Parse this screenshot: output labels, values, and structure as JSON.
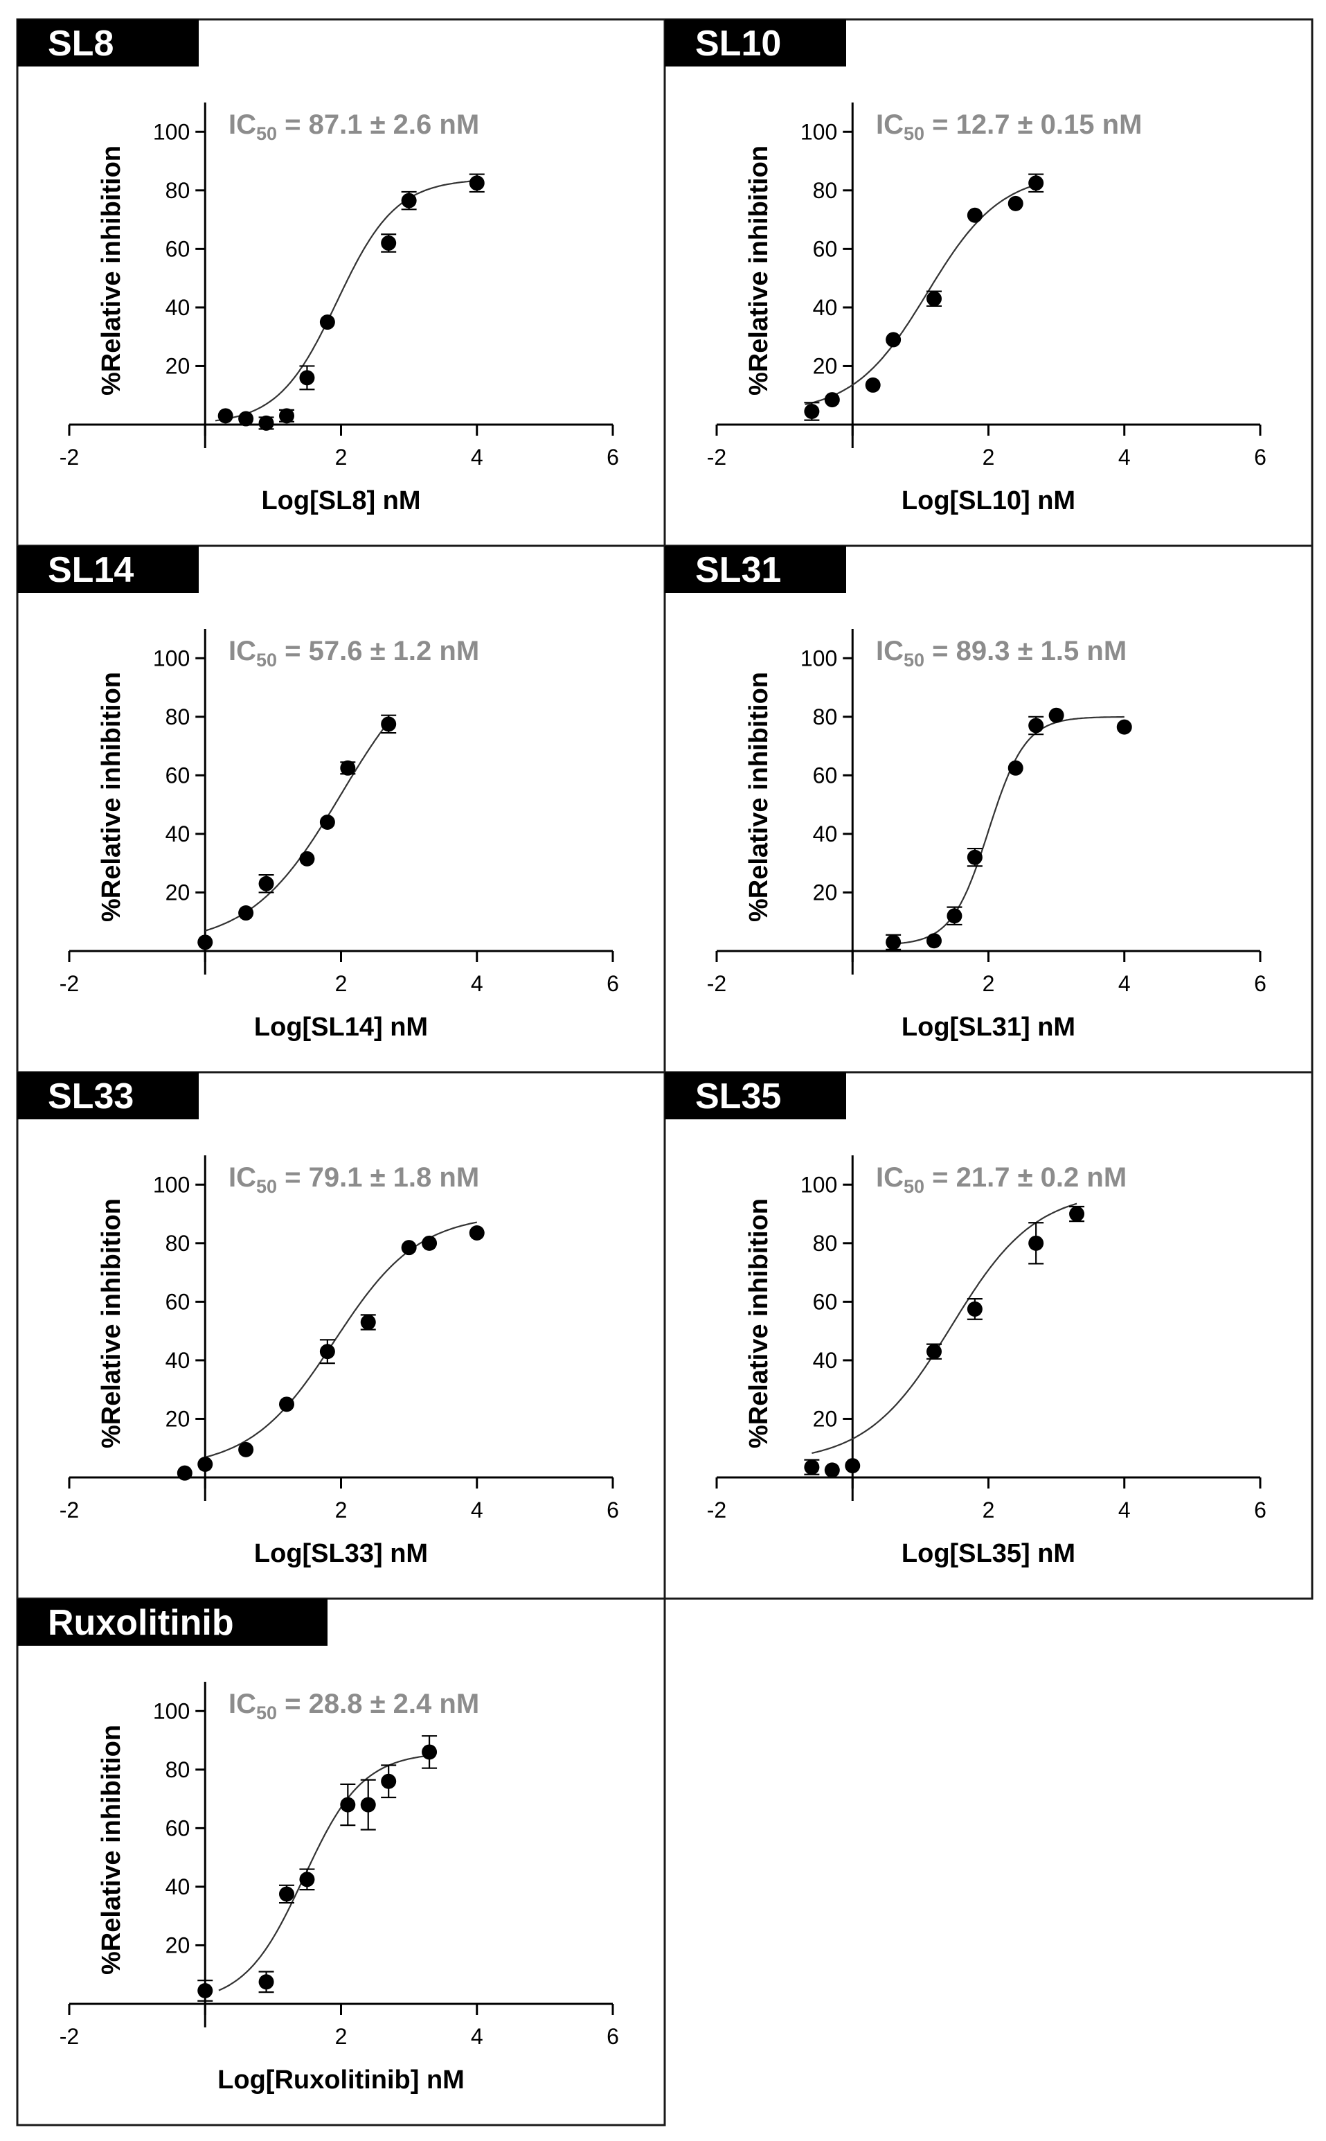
{
  "chart_data": [
    {
      "type": "scatter",
      "label": "SL8",
      "ic50_prefix": "IC",
      "ic50_sub": "50",
      "ic50_value": " = 87.1 ± 2.6 nM",
      "xlabel": "Log[SL8] nM",
      "ylabel": "%Relative inhibition",
      "xlim": [
        -2,
        6
      ],
      "ylim": [
        0,
        110
      ],
      "xticks": [
        "-2",
        "2",
        "4",
        "6"
      ],
      "yticks": [
        "20",
        "40",
        "60",
        "80",
        "100"
      ],
      "fit": {
        "bottom": 0,
        "top": 84,
        "logIC50": 1.94,
        "hill": 1.0,
        "xmin": 0.15,
        "xmax": 4.0
      },
      "points": [
        {
          "x": 0.3,
          "y": 3,
          "err": 0
        },
        {
          "x": 0.6,
          "y": 2,
          "err": 0
        },
        {
          "x": 0.9,
          "y": 0.5,
          "err": 2
        },
        {
          "x": 1.2,
          "y": 3,
          "err": 2
        },
        {
          "x": 1.5,
          "y": 16,
          "err": 4
        },
        {
          "x": 1.8,
          "y": 35,
          "err": 0
        },
        {
          "x": 2.7,
          "y": 62,
          "err": 3
        },
        {
          "x": 3.0,
          "y": 76.5,
          "err": 3
        },
        {
          "x": 4.0,
          "y": 82.5,
          "err": 3
        }
      ]
    },
    {
      "type": "scatter",
      "label": "SL10",
      "ic50_prefix": "IC",
      "ic50_sub": "50",
      "ic50_value": " = 12.7 ± 0.15 nM",
      "xlabel": "Log[SL10] nM",
      "ylabel": "%Relative inhibition",
      "xlim": [
        -2,
        6
      ],
      "ylim": [
        0,
        110
      ],
      "xticks": [
        "-2",
        "2",
        "4",
        "6"
      ],
      "yticks": [
        "20",
        "40",
        "60",
        "80",
        "100"
      ],
      "fit": {
        "bottom": 4,
        "top": 86,
        "logIC50": 1.1,
        "hill": 0.8,
        "xmin": -0.7,
        "xmax": 2.7
      },
      "points": [
        {
          "x": -0.6,
          "y": 4.5,
          "err": 3
        },
        {
          "x": -0.3,
          "y": 8.5,
          "err": 0
        },
        {
          "x": 0.3,
          "y": 13.5,
          "err": 0
        },
        {
          "x": 0.6,
          "y": 29,
          "err": 0
        },
        {
          "x": 1.2,
          "y": 43,
          "err": 2.5
        },
        {
          "x": 1.8,
          "y": 71.5,
          "err": 0
        },
        {
          "x": 2.4,
          "y": 75.5,
          "err": 0
        },
        {
          "x": 2.7,
          "y": 82.5,
          "err": 3
        }
      ]
    },
    {
      "type": "scatter",
      "label": "SL14",
      "ic50_prefix": "IC",
      "ic50_sub": "50",
      "ic50_value": " = 57.6 ± 1.2 nM",
      "xlabel": "Log[SL14] nM",
      "ylabel": "%Relative inhibition",
      "xlim": [
        -2,
        6
      ],
      "ylim": [
        0,
        110
      ],
      "xticks": [
        "-2",
        "2",
        "4",
        "6"
      ],
      "yticks": [
        "20",
        "40",
        "60",
        "80",
        "100"
      ],
      "fit": {
        "bottom": 2,
        "top": 105,
        "logIC50": 2.0,
        "hill": 0.65,
        "xmin": 0.0,
        "xmax": 2.7
      },
      "points": [
        {
          "x": 0.0,
          "y": 3,
          "err": 0
        },
        {
          "x": 0.6,
          "y": 13,
          "err": 0
        },
        {
          "x": 0.9,
          "y": 23,
          "err": 3
        },
        {
          "x": 1.5,
          "y": 31.5,
          "err": 0
        },
        {
          "x": 1.8,
          "y": 44,
          "err": 0
        },
        {
          "x": 2.1,
          "y": 62.5,
          "err": 2
        },
        {
          "x": 2.7,
          "y": 77.5,
          "err": 3
        }
      ]
    },
    {
      "type": "scatter",
      "label": "SL31",
      "ic50_prefix": "IC",
      "ic50_sub": "50",
      "ic50_value": " = 89.3 ± 1.5 nM",
      "xlabel": "Log[SL31] nM",
      "ylabel": "%Relative inhibition",
      "xlim": [
        -2,
        6
      ],
      "ylim": [
        0,
        110
      ],
      "xticks": [
        "-2",
        "2",
        "4",
        "6"
      ],
      "yticks": [
        "20",
        "40",
        "60",
        "80",
        "100"
      ],
      "fit": {
        "bottom": 2,
        "top": 80,
        "logIC50": 2.0,
        "hill": 1.6,
        "xmin": 0.6,
        "xmax": 4.0
      },
      "points": [
        {
          "x": 0.6,
          "y": 3,
          "err": 2.5
        },
        {
          "x": 1.2,
          "y": 3.5,
          "err": 0
        },
        {
          "x": 1.5,
          "y": 12,
          "err": 3
        },
        {
          "x": 1.8,
          "y": 32,
          "err": 3
        },
        {
          "x": 2.4,
          "y": 62.5,
          "err": 0
        },
        {
          "x": 2.7,
          "y": 77,
          "err": 3
        },
        {
          "x": 3.0,
          "y": 80.5,
          "err": 0
        },
        {
          "x": 4.0,
          "y": 76.5,
          "err": 0
        }
      ]
    },
    {
      "type": "scatter",
      "label": "SL33",
      "ic50_prefix": "IC",
      "ic50_sub": "50",
      "ic50_value": " = 79.1 ± 1.8 nM",
      "xlabel": "Log[SL33] nM",
      "ylabel": "%Relative inhibition",
      "xlim": [
        -2,
        6
      ],
      "ylim": [
        0,
        110
      ],
      "xticks": [
        "-2",
        "2",
        "4",
        "6"
      ],
      "yticks": [
        "20",
        "40",
        "60",
        "80",
        "100"
      ],
      "fit": {
        "bottom": 3,
        "top": 90,
        "logIC50": 1.9,
        "hill": 0.7,
        "xmin": 0.0,
        "xmax": 4.0
      },
      "points": [
        {
          "x": -0.3,
          "y": 1.5,
          "err": 0
        },
        {
          "x": 0.0,
          "y": 4.5,
          "err": 0
        },
        {
          "x": 0.6,
          "y": 9.5,
          "err": 0
        },
        {
          "x": 1.2,
          "y": 25,
          "err": 0
        },
        {
          "x": 1.8,
          "y": 43,
          "err": 4
        },
        {
          "x": 2.4,
          "y": 53,
          "err": 2.5
        },
        {
          "x": 3.0,
          "y": 78.5,
          "err": 0
        },
        {
          "x": 3.3,
          "y": 80,
          "err": 0
        },
        {
          "x": 4.0,
          "y": 83.5,
          "err": 0
        }
      ]
    },
    {
      "type": "scatter",
      "label": "SL35",
      "ic50_prefix": "IC",
      "ic50_sub": "50",
      "ic50_value": " = 21.7 ± 0.2 nM",
      "xlabel": "Log[SL35] nM",
      "ylabel": "%Relative inhibition",
      "xlim": [
        -2,
        6
      ],
      "ylim": [
        0,
        110
      ],
      "xticks": [
        "-2",
        "2",
        "4",
        "6"
      ],
      "yticks": [
        "20",
        "40",
        "60",
        "80",
        "100"
      ],
      "fit": {
        "bottom": 5,
        "top": 98,
        "logIC50": 1.45,
        "hill": 0.7,
        "xmin": -0.6,
        "xmax": 3.3
      },
      "points": [
        {
          "x": -0.6,
          "y": 3.5,
          "err": 2.5
        },
        {
          "x": -0.3,
          "y": 2.5,
          "err": 0
        },
        {
          "x": 0.0,
          "y": 4,
          "err": 0
        },
        {
          "x": 1.2,
          "y": 43,
          "err": 2.5
        },
        {
          "x": 1.8,
          "y": 57.5,
          "err": 3.5
        },
        {
          "x": 2.7,
          "y": 80,
          "err": 7
        },
        {
          "x": 3.3,
          "y": 90,
          "err": 2.5
        }
      ]
    },
    {
      "type": "scatter",
      "label": "Ruxolitinib",
      "ic50_prefix": "IC",
      "ic50_sub": "50",
      "ic50_value": " = 28.8 ± 2.4 nM",
      "xlabel": "Log[Ruxolitinib] nM",
      "ylabel": "%Relative inhibition",
      "xlim": [
        -2,
        6
      ],
      "ylim": [
        0,
        110
      ],
      "xticks": [
        "-2",
        "2",
        "4",
        "6"
      ],
      "yticks": [
        "20",
        "40",
        "60",
        "80",
        "100"
      ],
      "fit": {
        "bottom": 0,
        "top": 86,
        "logIC50": 1.45,
        "hill": 1.0,
        "xmin": 0.2,
        "xmax": 3.3
      },
      "points": [
        {
          "x": 0.0,
          "y": 4.5,
          "err": 3.5
        },
        {
          "x": 0.9,
          "y": 7.5,
          "err": 3.5
        },
        {
          "x": 1.2,
          "y": 37.5,
          "err": 3
        },
        {
          "x": 1.5,
          "y": 42.5,
          "err": 3.5
        },
        {
          "x": 2.1,
          "y": 68,
          "err": 7
        },
        {
          "x": 2.4,
          "y": 68,
          "err": 8.5
        },
        {
          "x": 2.7,
          "y": 76,
          "err": 5.5
        },
        {
          "x": 3.3,
          "y": 86,
          "err": 5.5
        }
      ]
    }
  ]
}
